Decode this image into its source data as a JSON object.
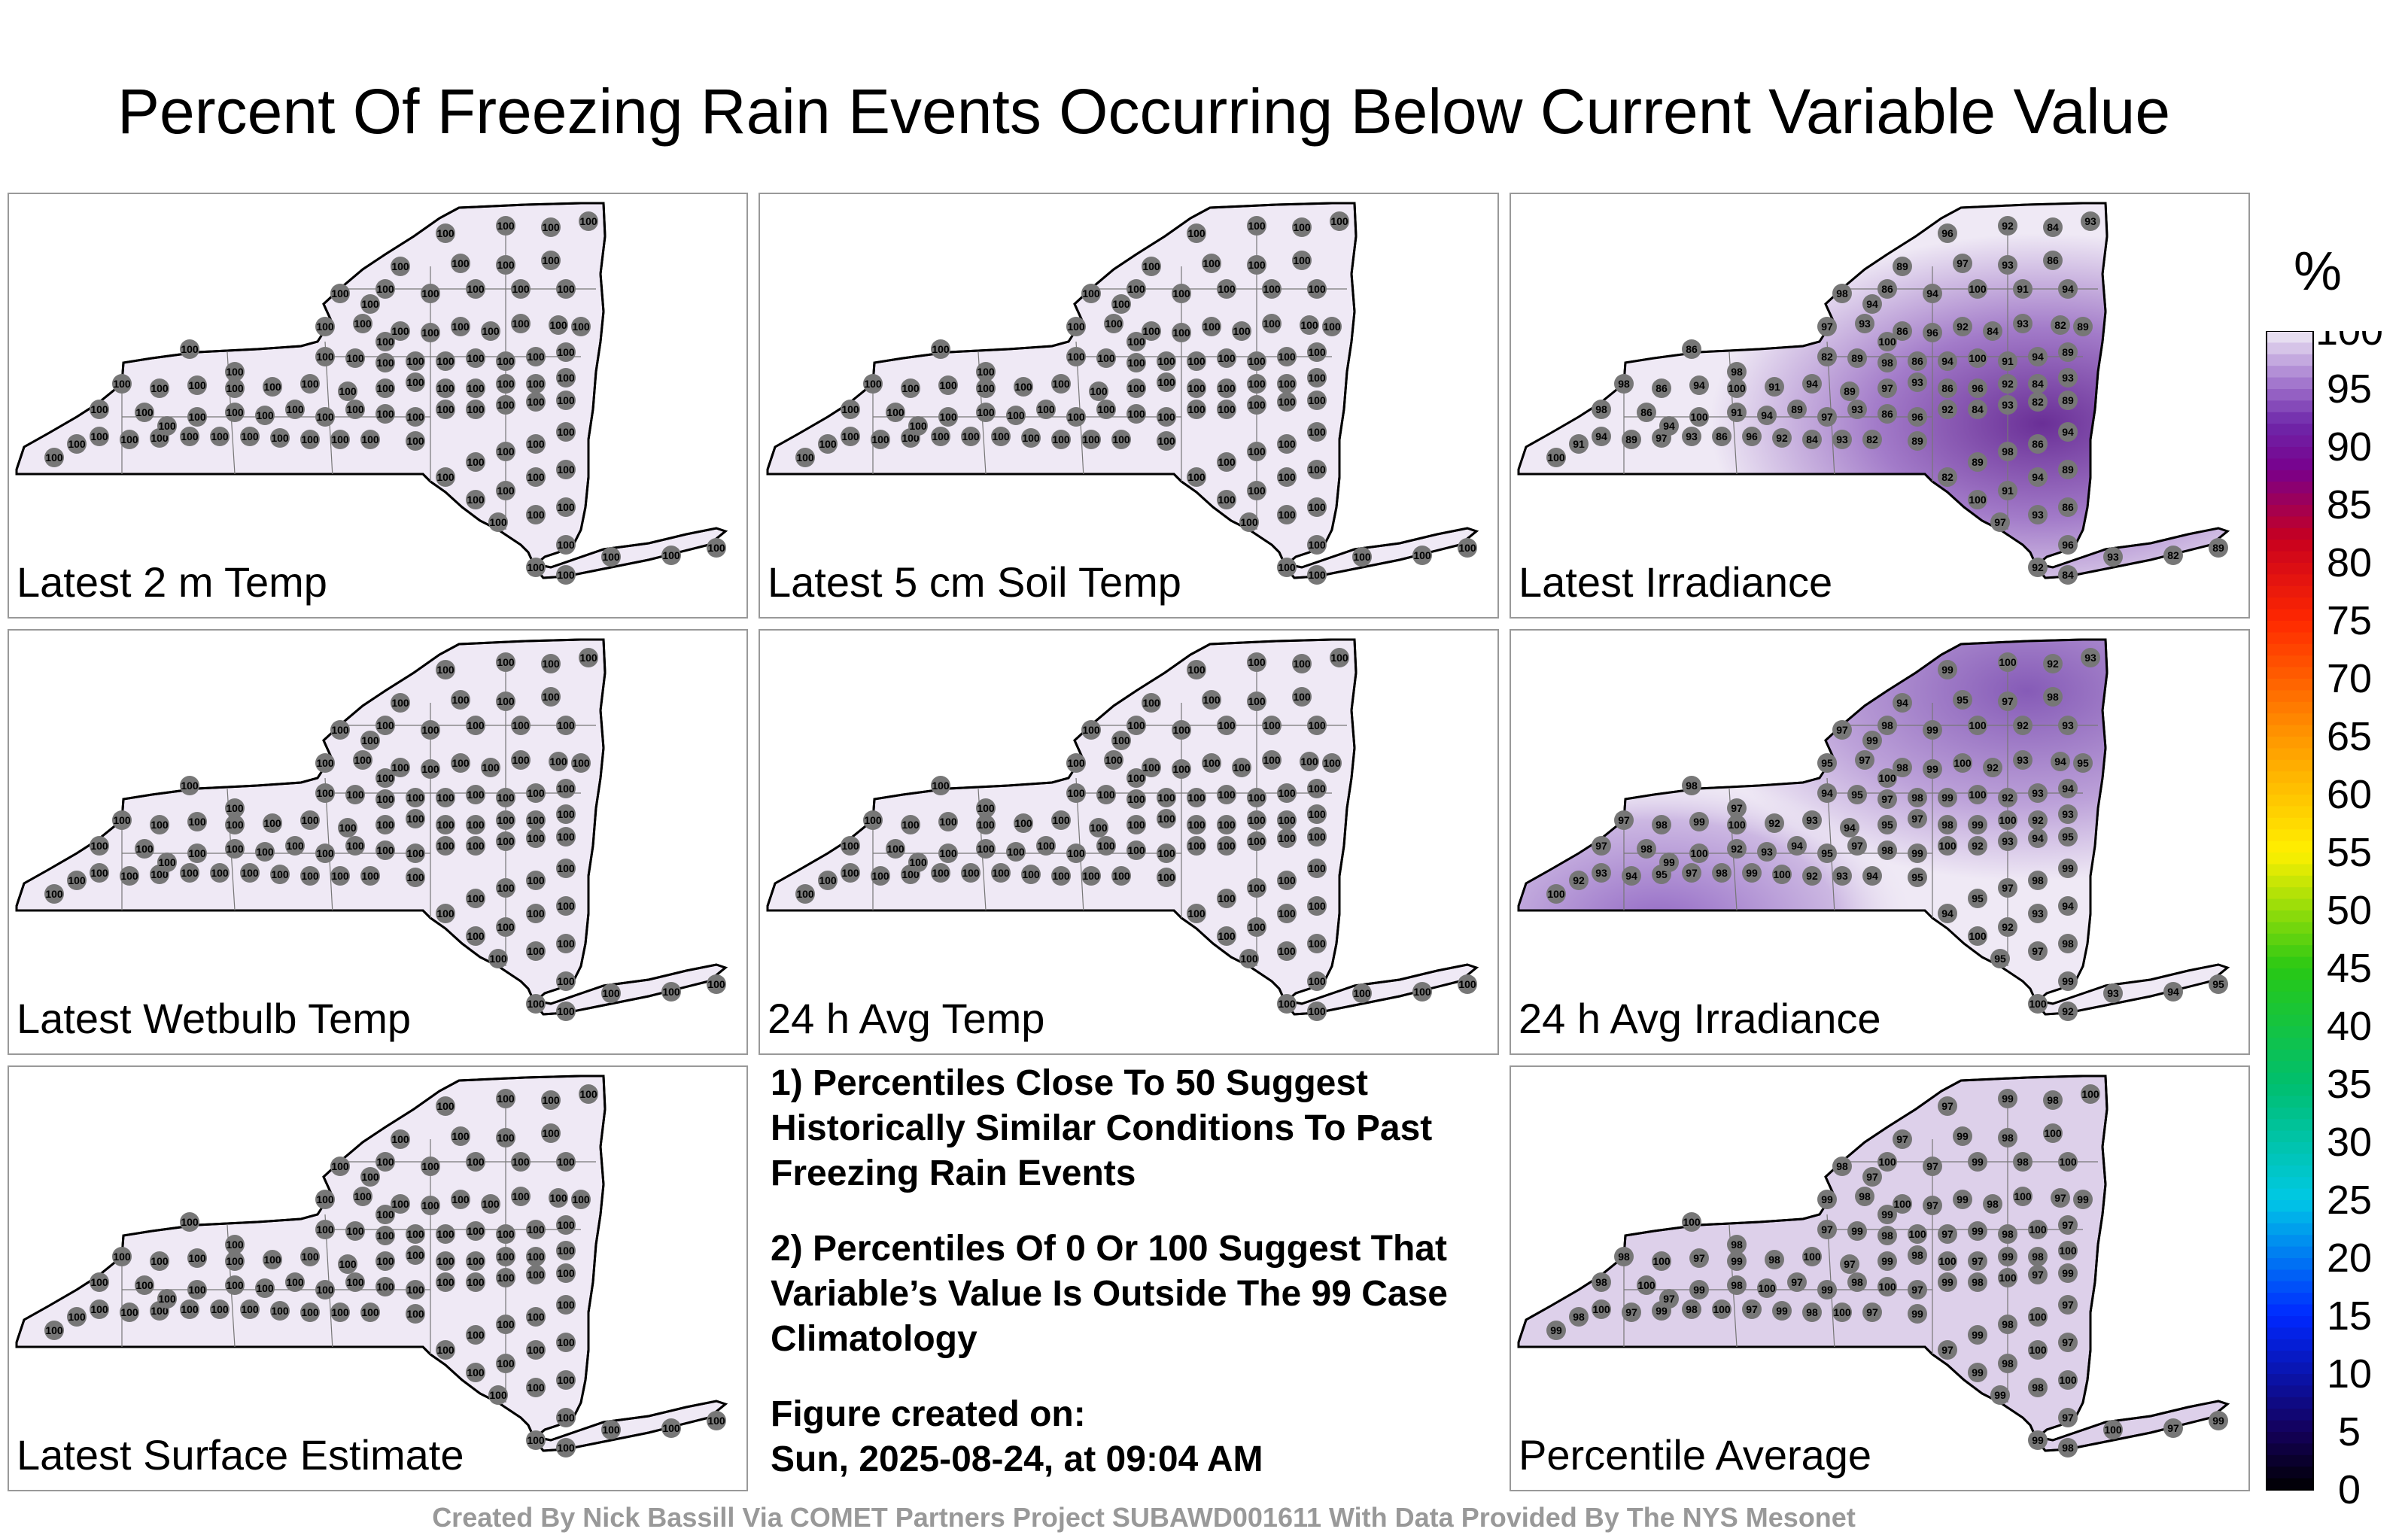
{
  "title": "Percent Of Freezing Rain Events Occurring Below Current Variable Value",
  "panels": [
    {
      "label": "Latest 2 m Temp",
      "shading": "none",
      "values": [
        "100"
      ]
    },
    {
      "label": "Latest 5 cm Soil Temp",
      "shading": "none",
      "values": [
        "100"
      ]
    },
    {
      "label": "Latest Irradiance",
      "shading": "east",
      "values": [
        "100",
        "91",
        "94",
        "89",
        "97",
        "93",
        "86",
        "96",
        "92",
        "84",
        "93",
        "82",
        "89",
        "98",
        "86",
        "94"
      ]
    },
    {
      "label": "Latest Wetbulb Temp",
      "shading": "none",
      "values": [
        "100"
      ]
    },
    {
      "label": "24 h Avg Temp",
      "shading": "none",
      "values": [
        "100"
      ]
    },
    {
      "label": "24 h Avg Irradiance",
      "shading": "north-west",
      "values": [
        "100",
        "92",
        "93",
        "94",
        "95",
        "97",
        "98",
        "99"
      ]
    },
    {
      "label": "Latest Surface Estimate",
      "shading": "none",
      "values": [
        "100"
      ]
    },
    {
      "label": "Percentile Average",
      "shading": "light",
      "values": [
        "99",
        "98",
        "100",
        "97"
      ]
    }
  ],
  "notes": {
    "note1": "1) Percentiles Close To 50 Suggest Historically Similar Conditions To Past Freezing Rain Events",
    "note2": "2) Percentiles Of 0 Or 100 Suggest That Variable’s Value Is Outside The 99 Case Climatology",
    "created_label": "Figure created on:",
    "created_date": "Sun, 2025-08-24, at 09:04 AM"
  },
  "colorbar": {
    "unit": "%",
    "ticks": [
      "100",
      "95",
      "90",
      "85",
      "80",
      "75",
      "70",
      "65",
      "60",
      "55",
      "50",
      "45",
      "40",
      "35",
      "30",
      "25",
      "20",
      "15",
      "10",
      "5",
      "0"
    ]
  },
  "footer": "Created By Nick Bassill Via COMET Partners Project SUBAWD001611 With Data Provided By The NYS Mesonet"
}
